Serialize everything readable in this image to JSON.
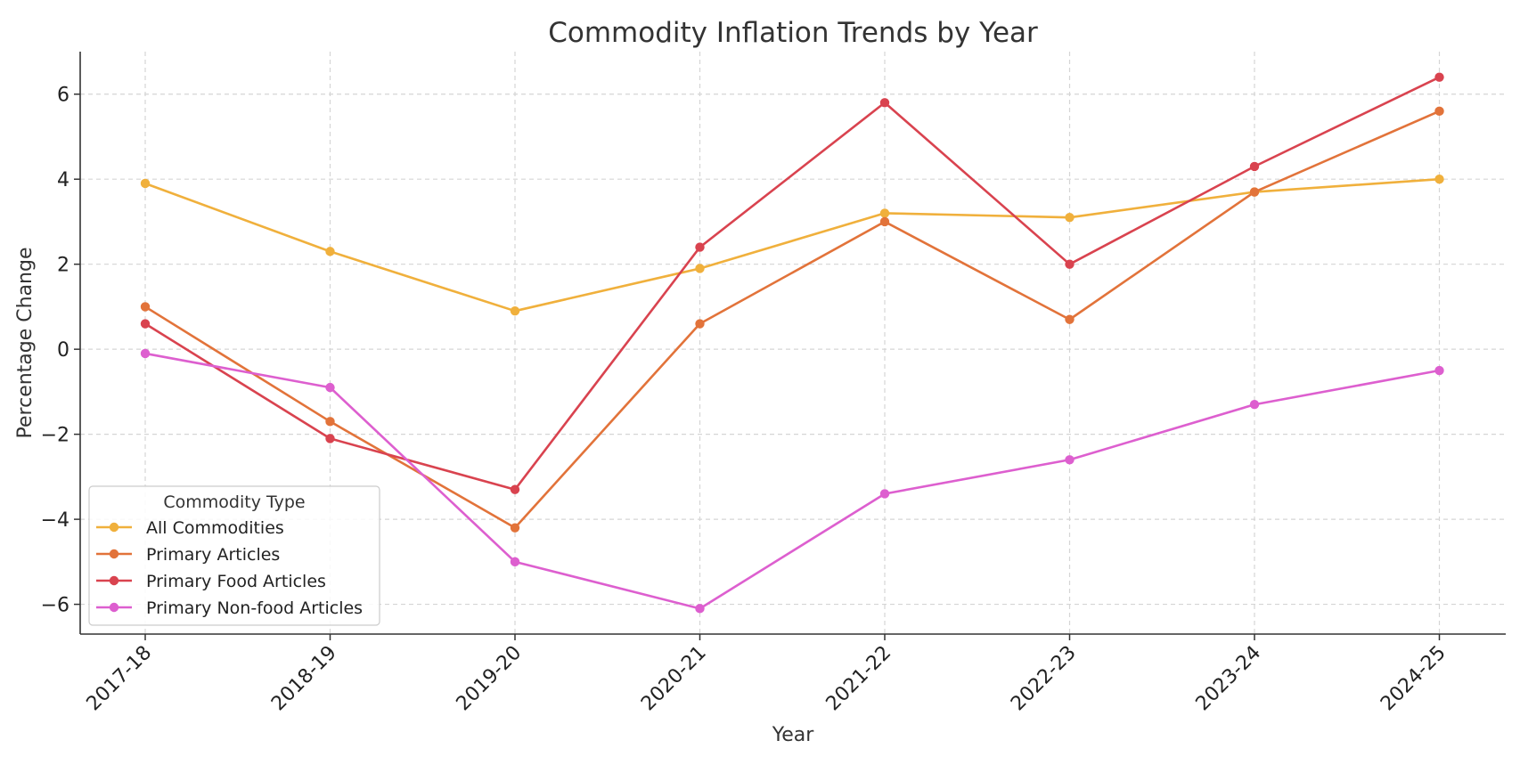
{
  "chart_data": {
    "type": "line",
    "title": "Commodity Inflation Trends by Year",
    "xlabel": "Year",
    "ylabel": "Percentage Change",
    "categories": [
      "2017-18",
      "2018-19",
      "2019-20",
      "2020-21",
      "2021-22",
      "2022-23",
      "2023-24",
      "2024-25"
    ],
    "ylim": [
      -6.7,
      7.0
    ],
    "yticks": [
      -6,
      -4,
      -2,
      0,
      2,
      4,
      6
    ],
    "ytick_labels": [
      "−6",
      "−4",
      "−2",
      "0",
      "2",
      "4",
      "6"
    ],
    "grid": true,
    "legend": {
      "title": "Commodity Type",
      "placement": "lower-left"
    },
    "series": [
      {
        "name": "All Commodities",
        "color": "#F0B03C",
        "values": [
          3.9,
          2.3,
          0.9,
          1.9,
          3.2,
          3.1,
          3.7,
          4.0
        ]
      },
      {
        "name": "Primary Articles",
        "color": "#E2733A",
        "values": [
          1.0,
          -1.7,
          -4.2,
          0.6,
          3.0,
          0.7,
          3.7,
          5.6
        ]
      },
      {
        "name": "Primary Food Articles",
        "color": "#D9434F",
        "values": [
          0.6,
          -2.1,
          -3.3,
          2.4,
          5.8,
          2.0,
          4.3,
          6.4
        ]
      },
      {
        "name": "Primary Non-food Articles",
        "color": "#DD5FCF",
        "values": [
          -0.1,
          -0.9,
          -5.0,
          -6.1,
          -3.4,
          -2.6,
          -1.3,
          -0.5
        ]
      }
    ]
  }
}
